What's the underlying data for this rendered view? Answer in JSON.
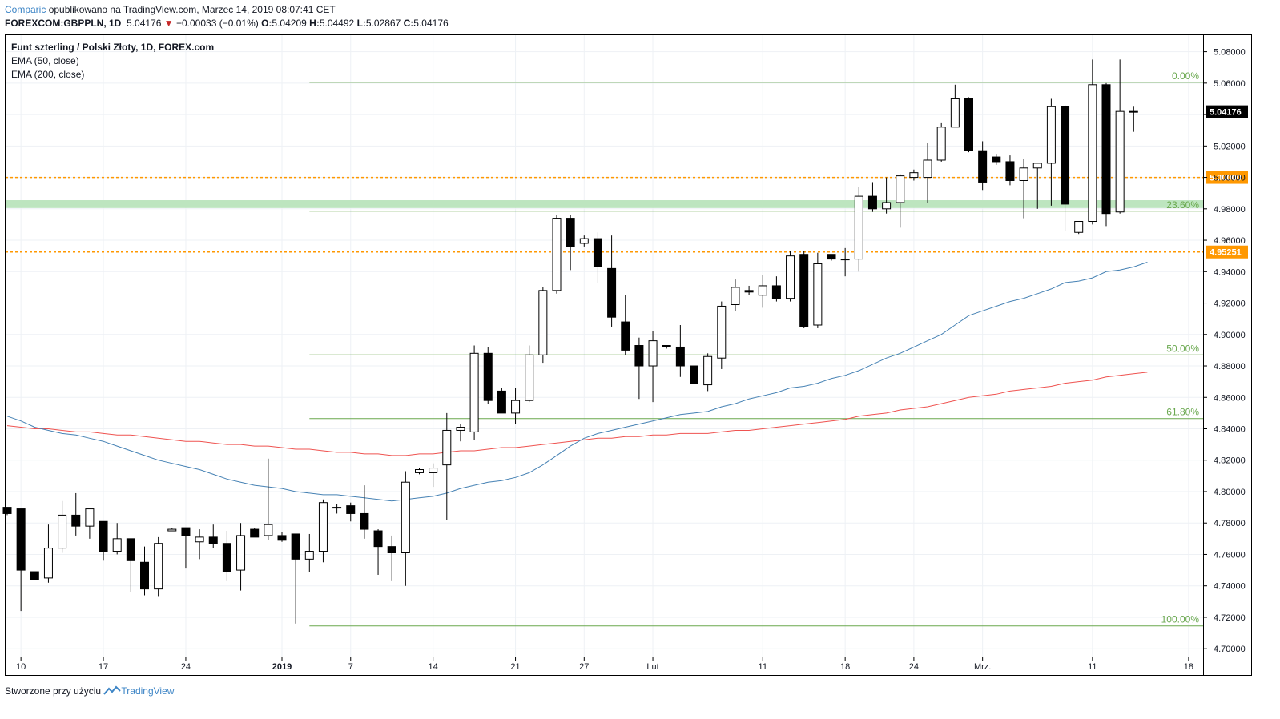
{
  "header": {
    "brand": "Comparic",
    "published": "opublikowano na TradingView.com, Marzec 14, 2019 08:07:41 CET",
    "symbol": "FOREXCOM:GBPPLN, 1D",
    "last": "5.04176",
    "arrow": "▼",
    "change": "−0.00033 (−0.01%)",
    "open_label": "O:",
    "open": "5.04209",
    "high_label": "H:",
    "high": "5.04492",
    "low_label": "L:",
    "low": "5.02867",
    "close_label": "C:",
    "close": "5.04176"
  },
  "footer": {
    "created_with": "Stworzone przy użyciu",
    "brand": "TradingView",
    "logo_icon": "tradingview-logo-icon"
  },
  "chart_data": {
    "type": "candlestick",
    "title": "Funt szterling / Polski Złoty, 1D, FOREX.com",
    "indicators": [
      {
        "name": "EMA (50, close)",
        "color": "#4682b4"
      },
      {
        "name": "EMA (200, close)",
        "color": "#ef5350"
      }
    ],
    "ylim": [
      4.695,
      5.0905
    ],
    "y_ticks": [
      "5.08000",
      "5.06000",
      "5.04000",
      "5.02000",
      "5.00000",
      "4.98000",
      "4.96000",
      "4.94000",
      "4.92000",
      "4.90000",
      "4.88000",
      "4.86000",
      "4.84000",
      "4.82000",
      "4.80000",
      "4.78000",
      "4.76000",
      "4.74000",
      "4.72000",
      "4.70000"
    ],
    "x_ticks": [
      {
        "label": "10",
        "i": 1
      },
      {
        "label": "17",
        "i": 7
      },
      {
        "label": "24",
        "i": 13
      },
      {
        "label": "2019",
        "i": 20
      },
      {
        "label": "7",
        "i": 25
      },
      {
        "label": "14",
        "i": 31
      },
      {
        "label": "21",
        "i": 37
      },
      {
        "label": "27",
        "i": 42
      },
      {
        "label": "Lut",
        "i": 47
      },
      {
        "label": "11",
        "i": 55
      },
      {
        "label": "18",
        "i": 61
      },
      {
        "label": "24",
        "i": 66
      },
      {
        "label": "Mrz.",
        "i": 71
      },
      {
        "label": "11",
        "i": 79
      },
      {
        "label": "18",
        "i": 86
      }
    ],
    "candles": [
      {
        "o": 4.79,
        "h": 4.79,
        "l": 4.785,
        "c": 4.786
      },
      {
        "o": 4.789,
        "h": 4.789,
        "l": 4.724,
        "c": 4.75
      },
      {
        "o": 4.749,
        "h": 4.749,
        "l": 4.744,
        "c": 4.744
      },
      {
        "o": 4.745,
        "h": 4.779,
        "l": 4.742,
        "c": 4.764
      },
      {
        "o": 4.764,
        "h": 4.794,
        "l": 4.761,
        "c": 4.785
      },
      {
        "o": 4.785,
        "h": 4.799,
        "l": 4.772,
        "c": 4.778
      },
      {
        "o": 4.778,
        "h": 4.789,
        "l": 4.77,
        "c": 4.789
      },
      {
        "o": 4.781,
        "h": 4.781,
        "l": 4.756,
        "c": 4.762
      },
      {
        "o": 4.762,
        "h": 4.78,
        "l": 4.76,
        "c": 4.77
      },
      {
        "o": 4.77,
        "h": 4.77,
        "l": 4.736,
        "c": 4.756
      },
      {
        "o": 4.755,
        "h": 4.765,
        "l": 4.734,
        "c": 4.738
      },
      {
        "o": 4.738,
        "h": 4.771,
        "l": 4.733,
        "c": 4.767
      },
      {
        "o": 4.775,
        "h": 4.777,
        "l": 4.775,
        "c": 4.776
      },
      {
        "o": 4.777,
        "h": 4.777,
        "l": 4.751,
        "c": 4.772
      },
      {
        "o": 4.768,
        "h": 4.776,
        "l": 4.757,
        "c": 4.771
      },
      {
        "o": 4.771,
        "h": 4.779,
        "l": 4.764,
        "c": 4.767
      },
      {
        "o": 4.767,
        "h": 4.775,
        "l": 4.743,
        "c": 4.749
      },
      {
        "o": 4.75,
        "h": 4.78,
        "l": 4.737,
        "c": 4.772
      },
      {
        "o": 4.776,
        "h": 4.777,
        "l": 4.771,
        "c": 4.771
      },
      {
        "o": 4.772,
        "h": 4.821,
        "l": 4.769,
        "c": 4.779
      },
      {
        "o": 4.772,
        "h": 4.774,
        "l": 4.768,
        "c": 4.769
      },
      {
        "o": 4.773,
        "h": 4.773,
        "l": 4.716,
        "c": 4.757
      },
      {
        "o": 4.757,
        "h": 4.773,
        "l": 4.749,
        "c": 4.762
      },
      {
        "o": 4.762,
        "h": 4.795,
        "l": 4.755,
        "c": 4.793
      },
      {
        "o": 4.79,
        "h": 4.792,
        "l": 4.786,
        "c": 4.79
      },
      {
        "o": 4.791,
        "h": 4.793,
        "l": 4.781,
        "c": 4.786
      },
      {
        "o": 4.786,
        "h": 4.804,
        "l": 4.77,
        "c": 4.776
      },
      {
        "o": 4.775,
        "h": 4.776,
        "l": 4.747,
        "c": 4.765
      },
      {
        "o": 4.765,
        "h": 4.772,
        "l": 4.743,
        "c": 4.761
      },
      {
        "o": 4.761,
        "h": 4.813,
        "l": 4.74,
        "c": 4.806
      },
      {
        "o": 4.812,
        "h": 4.815,
        "l": 4.811,
        "c": 4.814
      },
      {
        "o": 4.812,
        "h": 4.818,
        "l": 4.803,
        "c": 4.815
      },
      {
        "o": 4.817,
        "h": 4.85,
        "l": 4.782,
        "c": 4.839
      },
      {
        "o": 4.839,
        "h": 4.843,
        "l": 4.832,
        "c": 4.841
      },
      {
        "o": 4.838,
        "h": 4.893,
        "l": 4.833,
        "c": 4.888
      },
      {
        "o": 4.888,
        "h": 4.892,
        "l": 4.856,
        "c": 4.858
      },
      {
        "o": 4.864,
        "h": 4.866,
        "l": 4.85,
        "c": 4.85
      },
      {
        "o": 4.85,
        "h": 4.866,
        "l": 4.843,
        "c": 4.858
      },
      {
        "o": 4.858,
        "h": 4.893,
        "l": 4.857,
        "c": 4.887
      },
      {
        "o": 4.887,
        "h": 4.93,
        "l": 4.882,
        "c": 4.928
      },
      {
        "o": 4.928,
        "h": 4.976,
        "l": 4.926,
        "c": 4.974
      },
      {
        "o": 4.974,
        "h": 4.976,
        "l": 4.941,
        "c": 4.956
      },
      {
        "o": 4.958,
        "h": 4.963,
        "l": 4.956,
        "c": 4.961
      },
      {
        "o": 4.961,
        "h": 4.965,
        "l": 4.933,
        "c": 4.943
      },
      {
        "o": 4.942,
        "h": 4.963,
        "l": 4.905,
        "c": 4.911
      },
      {
        "o": 4.908,
        "h": 4.925,
        "l": 4.887,
        "c": 4.89
      },
      {
        "o": 4.893,
        "h": 4.898,
        "l": 4.859,
        "c": 4.88
      },
      {
        "o": 4.88,
        "h": 4.902,
        "l": 4.857,
        "c": 4.896
      },
      {
        "o": 4.893,
        "h": 4.893,
        "l": 4.891,
        "c": 4.892
      },
      {
        "o": 4.892,
        "h": 4.906,
        "l": 4.873,
        "c": 4.88
      },
      {
        "o": 4.88,
        "h": 4.893,
        "l": 4.86,
        "c": 4.869
      },
      {
        "o": 4.868,
        "h": 4.888,
        "l": 4.864,
        "c": 4.886
      },
      {
        "o": 4.885,
        "h": 4.921,
        "l": 4.878,
        "c": 4.918
      },
      {
        "o": 4.919,
        "h": 4.935,
        "l": 4.915,
        "c": 4.93
      },
      {
        "o": 4.928,
        "h": 4.931,
        "l": 4.925,
        "c": 4.927
      },
      {
        "o": 4.925,
        "h": 4.938,
        "l": 4.917,
        "c": 4.931
      },
      {
        "o": 4.931,
        "h": 4.937,
        "l": 4.921,
        "c": 4.923
      },
      {
        "o": 4.923,
        "h": 4.953,
        "l": 4.921,
        "c": 4.95
      },
      {
        "o": 4.951,
        "h": 4.953,
        "l": 4.904,
        "c": 4.905
      },
      {
        "o": 4.906,
        "h": 4.952,
        "l": 4.904,
        "c": 4.945
      },
      {
        "o": 4.951,
        "h": 4.951,
        "l": 4.947,
        "c": 4.948
      },
      {
        "o": 4.948,
        "h": 4.955,
        "l": 4.937,
        "c": 4.948
      },
      {
        "o": 4.948,
        "h": 4.994,
        "l": 4.94,
        "c": 4.988
      },
      {
        "o": 4.988,
        "h": 4.997,
        "l": 4.978,
        "c": 4.98
      },
      {
        "o": 4.98,
        "h": 5.0,
        "l": 4.977,
        "c": 4.984
      },
      {
        "o": 4.984,
        "h": 5.002,
        "l": 4.968,
        "c": 5.001
      },
      {
        "o": 5.0,
        "h": 5.005,
        "l": 4.998,
        "c": 5.003
      },
      {
        "o": 5.0,
        "h": 5.022,
        "l": 4.984,
        "c": 5.011
      },
      {
        "o": 5.011,
        "h": 5.035,
        "l": 5.01,
        "c": 5.032
      },
      {
        "o": 5.032,
        "h": 5.059,
        "l": 5.034,
        "c": 5.05
      },
      {
        "o": 5.05,
        "h": 5.051,
        "l": 5.016,
        "c": 5.017
      },
      {
        "o": 5.017,
        "h": 5.023,
        "l": 4.992,
        "c": 4.997
      },
      {
        "o": 5.013,
        "h": 5.015,
        "l": 5.008,
        "c": 5.01
      },
      {
        "o": 5.01,
        "h": 5.014,
        "l": 4.995,
        "c": 4.998
      },
      {
        "o": 4.998,
        "h": 5.012,
        "l": 4.974,
        "c": 5.006
      },
      {
        "o": 5.006,
        "h": 5.009,
        "l": 4.98,
        "c": 5.009
      },
      {
        "o": 5.009,
        "h": 5.05,
        "l": 4.982,
        "c": 5.045
      },
      {
        "o": 5.045,
        "h": 5.046,
        "l": 4.966,
        "c": 4.983
      },
      {
        "o": 4.965,
        "h": 4.972,
        "l": 4.964,
        "c": 4.972
      },
      {
        "o": 4.972,
        "h": 5.075,
        "l": 4.97,
        "c": 5.059
      },
      {
        "o": 5.059,
        "h": 5.06,
        "l": 4.969,
        "c": 4.977
      },
      {
        "o": 4.978,
        "h": 5.075,
        "l": 4.977,
        "c": 5.042
      },
      {
        "o": 5.042,
        "h": 5.045,
        "l": 5.029,
        "c": 5.042
      }
    ],
    "ema50": [
      4.848,
      4.845,
      4.841,
      4.839,
      4.837,
      4.836,
      4.834,
      4.832,
      4.829,
      4.826,
      4.823,
      4.82,
      4.818,
      4.816,
      4.814,
      4.811,
      4.808,
      4.806,
      4.804,
      4.803,
      4.802,
      4.8,
      4.799,
      4.798,
      4.798,
      4.797,
      4.796,
      4.795,
      4.794,
      4.795,
      4.796,
      4.797,
      4.799,
      4.802,
      4.804,
      4.806,
      4.807,
      4.809,
      4.812,
      4.817,
      4.823,
      4.829,
      4.834,
      4.837,
      4.839,
      4.841,
      4.843,
      4.845,
      4.847,
      4.849,
      4.85,
      4.851,
      4.854,
      4.856,
      4.859,
      4.861,
      4.863,
      4.866,
      4.867,
      4.869,
      4.872,
      4.874,
      4.877,
      4.881,
      4.885,
      4.888,
      4.892,
      4.896,
      4.9,
      4.906,
      4.912,
      4.915,
      4.918,
      4.921,
      4.923,
      4.926,
      4.929,
      4.933,
      4.934,
      4.936,
      4.94,
      4.941,
      4.943,
      4.946
    ],
    "ema200": [
      4.842,
      4.841,
      4.84,
      4.84,
      4.839,
      4.838,
      4.838,
      4.837,
      4.836,
      4.836,
      4.835,
      4.834,
      4.833,
      4.832,
      4.832,
      4.831,
      4.83,
      4.83,
      4.829,
      4.829,
      4.828,
      4.827,
      4.827,
      4.826,
      4.825,
      4.825,
      4.824,
      4.824,
      4.823,
      4.823,
      4.824,
      4.824,
      4.825,
      4.826,
      4.826,
      4.827,
      4.828,
      4.828,
      4.829,
      4.83,
      4.831,
      4.832,
      4.833,
      4.834,
      4.834,
      4.835,
      4.835,
      4.836,
      4.836,
      4.837,
      4.837,
      4.837,
      4.838,
      4.839,
      4.839,
      4.84,
      4.841,
      4.842,
      4.843,
      4.844,
      4.845,
      4.846,
      4.848,
      4.849,
      4.85,
      4.852,
      4.853,
      4.854,
      4.856,
      4.858,
      4.86,
      4.861,
      4.862,
      4.864,
      4.865,
      4.866,
      4.867,
      4.869,
      4.87,
      4.871,
      4.873,
      4.874,
      4.875,
      4.876
    ],
    "fib_levels": [
      {
        "label": "0.00%",
        "value": 5.0605
      },
      {
        "label": "23.60%",
        "value": 4.9785
      },
      {
        "label": "50.00%",
        "value": 4.887
      },
      {
        "label": "61.80%",
        "value": 4.8465
      },
      {
        "label": "100.00%",
        "value": 4.7145
      }
    ],
    "fib_start_index": 22,
    "fib_color": "#6aa84f",
    "horizontal_lines": [
      {
        "value": 5.0,
        "label": "5.00000",
        "color": "#ff9800"
      },
      {
        "value": 4.95251,
        "label": "4.95251",
        "color": "#ff9800"
      }
    ],
    "zone": {
      "from": 4.9805,
      "to": 4.9855,
      "color": "#bde5bf"
    },
    "last_price": {
      "value": 5.04176,
      "label": "5.04176"
    },
    "colors": {
      "bull_fill": "#ffffff",
      "bear_fill": "#000000",
      "candle_line": "#000000",
      "grid": "#eef1f5",
      "axis_text": "#131722"
    }
  }
}
